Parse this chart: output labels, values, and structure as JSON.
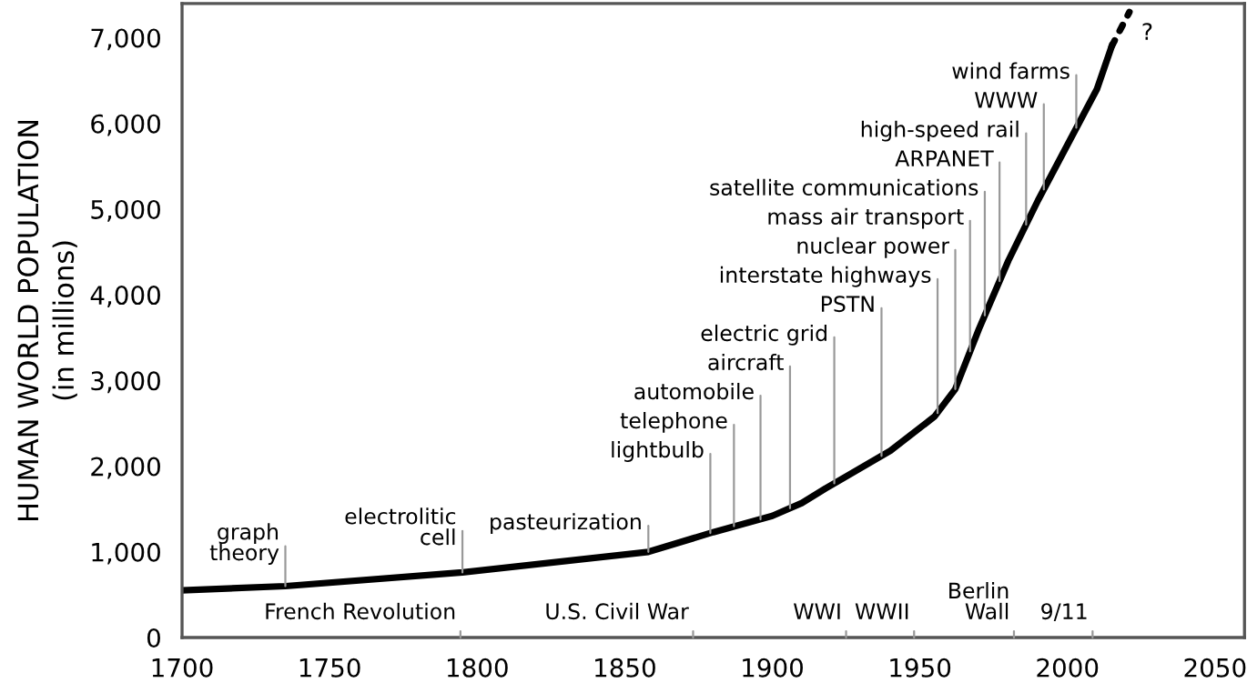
{
  "chart_data": {
    "type": "line",
    "ylabel": "HUMAN WORLD POPULATION\n(in millions)",
    "xlim": [
      1700,
      2060
    ],
    "xticks": [
      1700,
      1750,
      1800,
      1850,
      1900,
      1950,
      2000,
      2050
    ],
    "ylim": [
      0,
      7400
    ],
    "yticks": [
      0,
      {
        "value": 1000,
        "label": "1,000"
      },
      {
        "value": 2000,
        "label": "2,000"
      },
      {
        "value": 3000,
        "label": "3,000"
      },
      {
        "value": 4000,
        "label": "4,000"
      },
      {
        "value": 5000,
        "label": "5,000"
      },
      {
        "value": 6000,
        "label": "6,000"
      },
      {
        "value": 7000,
        "label": "7,000"
      }
    ],
    "grid": false,
    "legend": false,
    "marker": "none",
    "series": [
      {
        "color": "#000000",
        "line_style": "solid",
        "x": [
          1700,
          1735,
          1795,
          1858,
          1880,
          1900,
          1910,
          1918,
          1922,
          1940,
          1955,
          1962,
          1970,
          1980,
          1990,
          2000,
          2010,
          2015
        ],
        "values": [
          550,
          600,
          760,
          1000,
          1230,
          1420,
          1570,
          1740,
          1820,
          2180,
          2580,
          2900,
          3600,
          4400,
          5100,
          5750,
          6400,
          6900
        ]
      },
      {
        "color": "#000000",
        "line_style": "dotted",
        "x": [
          2015,
          2021
        ],
        "values": [
          6900,
          7300
        ]
      }
    ],
    "annotations": [
      {
        "text": "graph\ntheory",
        "x": 1735,
        "y": 600
      },
      {
        "text": "electrolitic\ncell",
        "x": 1795,
        "y": 760
      },
      {
        "text": "pasteurization",
        "x": 1858,
        "y": 1000
      },
      {
        "text": "lightbulb",
        "x": 1879,
        "y": 1220
      },
      {
        "text": "telephone",
        "x": 1887,
        "y": 1300
      },
      {
        "text": "automobile",
        "x": 1896,
        "y": 1380
      },
      {
        "text": "aircraft",
        "x": 1906,
        "y": 1510
      },
      {
        "text": "electric grid",
        "x": 1921,
        "y": 1800
      },
      {
        "text": "PSTN",
        "x": 1937,
        "y": 2120
      },
      {
        "text": "interstate highways",
        "x": 1956,
        "y": 2620
      },
      {
        "text": "nuclear power",
        "x": 1962,
        "y": 2900
      },
      {
        "text": "mass air transport",
        "x": 1967,
        "y": 3340
      },
      {
        "text": "satellite communications",
        "x": 1972,
        "y": 3760
      },
      {
        "text": "ARPANET",
        "x": 1977,
        "y": 4160
      },
      {
        "text": "high-speed rail",
        "x": 1986,
        "y": 4820
      },
      {
        "text": "WWW",
        "x": 1992,
        "y": 5230
      },
      {
        "text": "wind farms",
        "x": 2003,
        "y": 5950
      },
      "French Revolution",
      "U.S. Civil War",
      "WWI",
      "WWII",
      "Berlin\nWall",
      "9/11",
      {
        "text": "?",
        "x": 2021,
        "y": 7300
      }
    ]
  }
}
